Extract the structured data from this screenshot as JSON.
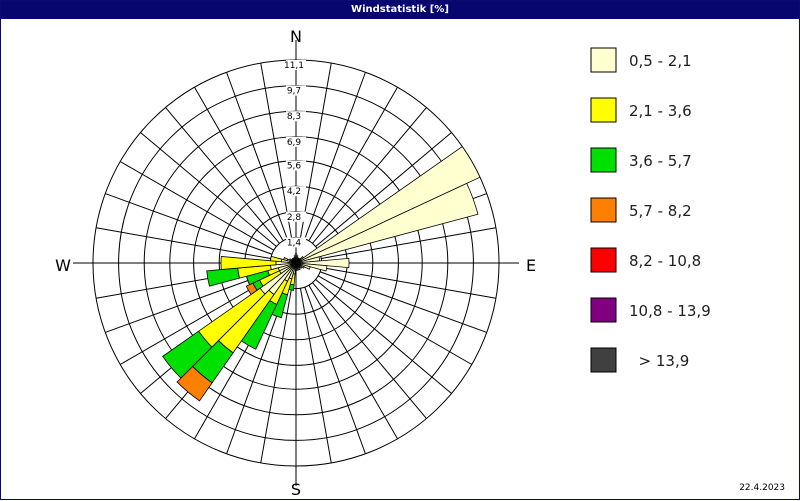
{
  "window": {
    "title": "Windstatistik [%]"
  },
  "footer": {
    "date": "22.4.2023"
  },
  "chart_data": {
    "type": "windrose",
    "title": "Windstatistik [%]",
    "unit": "%",
    "radial_max": 11.1,
    "ring_labels": [
      "1,4",
      "2,8",
      "4,2",
      "5,6",
      "6,9",
      "8,3",
      "9,7",
      "11,1"
    ],
    "ring_values": [
      1.4,
      2.8,
      4.2,
      5.6,
      6.9,
      8.3,
      9.7,
      11.1
    ],
    "compass": {
      "n": "N",
      "e": "E",
      "s": "S",
      "w": "W"
    },
    "sector_count": 36,
    "legend_position": "right",
    "classes": [
      {
        "label": "0,5 - 2,1",
        "color": "#ffffd0"
      },
      {
        "label": "2,1 - 3,6",
        "color": "#ffff00"
      },
      {
        "label": "3,6 - 5,7",
        "color": "#00e000"
      },
      {
        "label": "5,7 - 8,2",
        "color": "#ff8000"
      },
      {
        "label": "8,2 - 10,8",
        "color": "#ff0000"
      },
      {
        "label": "10,8 - 13,9",
        "color": "#800080"
      },
      {
        "label": "  > 13,9",
        "color": "#404040"
      }
    ],
    "sectors": [
      {
        "dir": 0,
        "values": [
          0.5,
          0,
          0,
          0,
          0,
          0,
          0
        ]
      },
      {
        "dir": 10,
        "values": [
          0.4,
          0,
          0,
          0,
          0,
          0,
          0
        ]
      },
      {
        "dir": 20,
        "values": [
          0.3,
          0,
          0,
          0,
          0,
          0,
          0
        ]
      },
      {
        "dir": 30,
        "values": [
          0.3,
          0,
          0,
          0,
          0,
          0,
          0
        ]
      },
      {
        "dir": 40,
        "values": [
          0.3,
          0,
          0,
          0,
          0,
          0,
          0
        ]
      },
      {
        "dir": 50,
        "values": [
          0.5,
          0,
          0,
          0,
          0,
          0,
          0
        ]
      },
      {
        "dir": 60,
        "values": [
          11.1,
          0,
          0,
          0,
          0,
          0,
          0
        ]
      },
      {
        "dir": 70,
        "values": [
          10.3,
          0,
          0,
          0,
          0,
          0,
          0
        ]
      },
      {
        "dir": 80,
        "values": [
          1.3,
          0,
          0,
          0,
          0,
          0,
          0
        ]
      },
      {
        "dir": 90,
        "values": [
          2.9,
          0,
          0,
          0,
          0,
          0,
          0
        ]
      },
      {
        "dir": 100,
        "values": [
          1.7,
          0,
          0,
          0,
          0,
          0,
          0
        ]
      },
      {
        "dir": 110,
        "values": [
          0.8,
          0,
          0,
          0,
          0,
          0,
          0
        ]
      },
      {
        "dir": 120,
        "values": [
          0.5,
          0,
          0,
          0,
          0,
          0,
          0
        ]
      },
      {
        "dir": 130,
        "values": [
          0.4,
          0,
          0,
          0,
          0,
          0,
          0
        ]
      },
      {
        "dir": 140,
        "values": [
          0.3,
          0,
          0,
          0,
          0,
          0,
          0
        ]
      },
      {
        "dir": 150,
        "values": [
          0.4,
          0,
          0,
          0,
          0,
          0,
          0
        ]
      },
      {
        "dir": 160,
        "values": [
          0.4,
          0,
          0,
          0,
          0,
          0,
          0
        ]
      },
      {
        "dir": 170,
        "values": [
          0.4,
          0,
          0,
          0,
          0,
          0,
          0
        ]
      },
      {
        "dir": 180,
        "values": [
          0.4,
          0,
          0,
          0,
          0,
          0,
          0
        ]
      },
      {
        "dir": 190,
        "values": [
          0.6,
          0.6,
          0.3,
          0,
          0,
          0,
          0
        ]
      },
      {
        "dir": 200,
        "values": [
          0.9,
          0.9,
          1.3,
          0,
          0,
          0,
          0
        ]
      },
      {
        "dir": 210,
        "values": [
          1.1,
          1.4,
          2.7,
          0,
          0,
          0,
          0
        ]
      },
      {
        "dir": 220,
        "values": [
          2.1,
          3.9,
          2.0,
          1.2,
          0,
          0,
          0
        ]
      },
      {
        "dir": 230,
        "values": [
          2.4,
          4.1,
          2.4,
          0,
          0,
          0,
          0
        ]
      },
      {
        "dir": 240,
        "values": [
          1.0,
          1.2,
          0.4,
          0.4,
          0,
          0,
          0
        ]
      },
      {
        "dir": 250,
        "values": [
          1.0,
          0.6,
          1.2,
          0,
          0,
          0,
          0
        ]
      },
      {
        "dir": 260,
        "values": [
          1.4,
          1.8,
          1.7,
          0,
          0,
          0,
          0
        ]
      },
      {
        "dir": 270,
        "values": [
          1.1,
          3.0,
          0,
          0,
          0,
          0,
          0
        ]
      },
      {
        "dir": 280,
        "values": [
          0.8,
          0.6,
          0,
          0,
          0,
          0,
          0
        ]
      },
      {
        "dir": 290,
        "values": [
          0.5,
          0.2,
          0,
          0,
          0,
          0,
          0
        ]
      },
      {
        "dir": 300,
        "values": [
          0.4,
          0,
          0,
          0,
          0,
          0,
          0
        ]
      },
      {
        "dir": 310,
        "values": [
          0.3,
          0,
          0,
          0,
          0,
          0,
          0
        ]
      },
      {
        "dir": 320,
        "values": [
          0.3,
          0,
          0,
          0,
          0,
          0,
          0
        ]
      },
      {
        "dir": 330,
        "values": [
          0.3,
          0,
          0,
          0,
          0,
          0,
          0
        ]
      },
      {
        "dir": 340,
        "values": [
          0.3,
          0,
          0,
          0,
          0,
          0,
          0
        ]
      },
      {
        "dir": 350,
        "values": [
          0.4,
          0,
          0,
          0,
          0,
          0,
          0
        ]
      }
    ]
  }
}
